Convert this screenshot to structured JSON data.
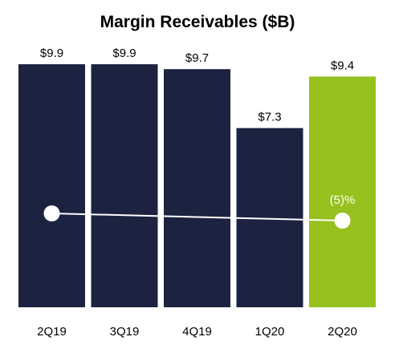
{
  "chart_data": {
    "type": "bar",
    "title": "Margin Receivables ($B)",
    "categories": [
      "2Q19",
      "3Q19",
      "4Q19",
      "1Q20",
      "2Q20"
    ],
    "values": [
      9.9,
      9.9,
      9.7,
      7.3,
      9.4
    ],
    "value_labels": [
      "$9.9",
      "$9.9",
      "$9.7",
      "$7.3",
      "$9.4"
    ],
    "highlight_index": 4,
    "colors": {
      "bar": "#1b2340",
      "highlight": "#97c11f",
      "line": "#ffffff",
      "background": "#ffffff"
    },
    "trend_line": {
      "from": "2Q19",
      "to": "2Q20",
      "annotation": "(5)%"
    },
    "ylim": [
      0,
      10.0
    ],
    "grid": false,
    "legend": "none"
  }
}
